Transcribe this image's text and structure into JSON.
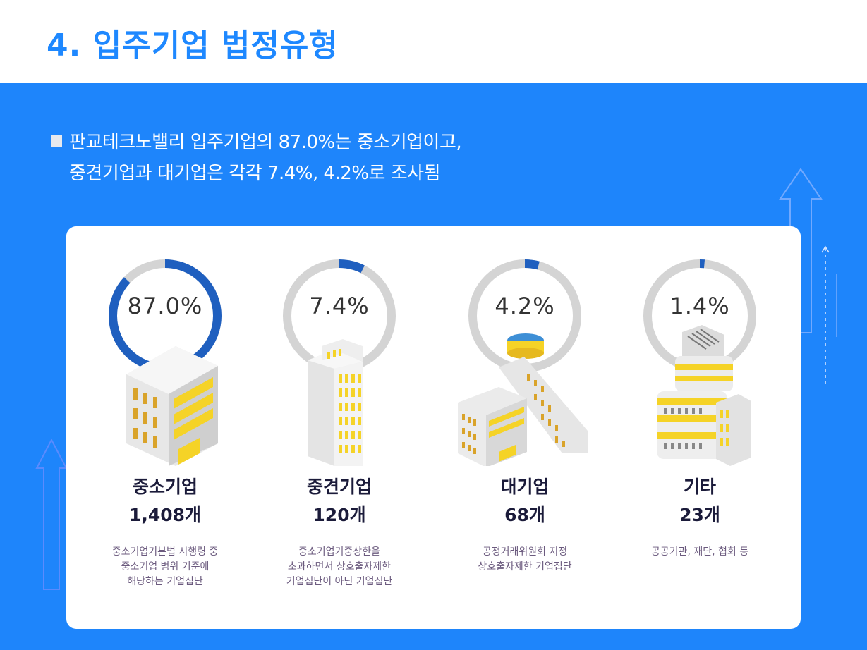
{
  "page": {
    "title": "4. 입주기업 법정유형"
  },
  "summary": {
    "line1": "판교테크노밸리 입주기업의 87.0%는 중소기업이고,",
    "line2": "중견기업과 대기업은 각각 7.4%, 4.2%로 조사됨"
  },
  "colors": {
    "accent": "#1e85fb",
    "ring_fill": "#1f5fbf",
    "ring_track": "#d4d4d4",
    "window": "#f5d327"
  },
  "chart_data": {
    "type": "donut",
    "title": "",
    "unit": "%",
    "categories": [
      {
        "name": "중소기업",
        "percent": 87.0,
        "percent_label": "87.0%",
        "count_label": "1,408개",
        "desc": [
          "중소기업기본법 시행령 중",
          "중소기업 범위 기준에",
          "해당하는 기업집단"
        ],
        "building": "small-building"
      },
      {
        "name": "중견기업",
        "percent": 7.4,
        "percent_label": "7.4%",
        "count_label": "120개",
        "desc": [
          "중소기업기중상한을",
          "초과하면서 상호출자제한",
          "기업집단이 아닌 기업집단"
        ],
        "building": "tower-building"
      },
      {
        "name": "대기업",
        "percent": 4.2,
        "percent_label": "4.2%",
        "count_label": "68개",
        "desc": [
          "공정거래위원회 지정",
          "상호출자제한 기업집단"
        ],
        "building": "campus-building"
      },
      {
        "name": "기타",
        "percent": 1.4,
        "percent_label": "1.4%",
        "count_label": "23개",
        "desc": [
          "공공기관, 재단, 협회 등"
        ],
        "building": "round-building"
      }
    ]
  }
}
